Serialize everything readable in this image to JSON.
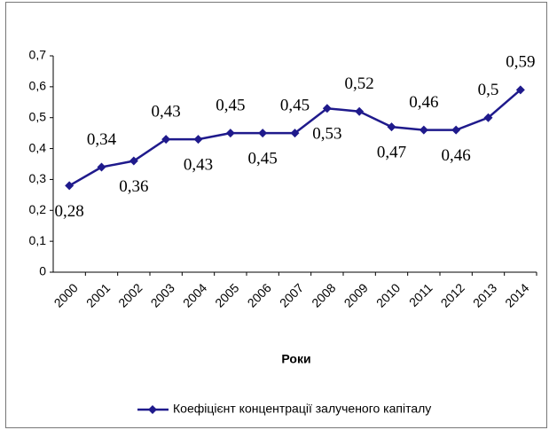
{
  "chart_data": {
    "type": "line",
    "x_label": "Роки",
    "categories": [
      "2000",
      "2001",
      "2002",
      "2003",
      "2004",
      "2005",
      "2006",
      "2007",
      "2008",
      "2009",
      "2010",
      "2011",
      "2012",
      "2013",
      "2014"
    ],
    "series": [
      {
        "name": "Коефіцієнт концентрації залученого капіталу",
        "color": "#1f1a8c",
        "values": [
          0.28,
          0.34,
          0.36,
          0.43,
          0.43,
          0.45,
          0.45,
          0.45,
          0.53,
          0.52,
          0.47,
          0.46,
          0.46,
          0.5,
          0.59
        ],
        "value_labels": [
          "0,28",
          "0,34",
          "0,36",
          "0,43",
          "0,43",
          "0,45",
          "0,45",
          "0,45",
          "0,53",
          "0,52",
          "0,47",
          "0,46",
          "0,46",
          "0,5",
          "0,59"
        ]
      }
    ],
    "ylim": [
      0,
      0.7
    ],
    "yticks": [
      0,
      {
        "value": 0.1,
        "label": "0,1"
      },
      {
        "value": 0.2,
        "label": "0,2"
      },
      {
        "value": 0.3,
        "label": "0,3"
      },
      {
        "value": 0.4,
        "label": "0,4"
      },
      {
        "value": 0.5,
        "label": "0,5"
      },
      {
        "value": 0.6,
        "label": "0,6"
      },
      {
        "value": 0.7,
        "label": "0,7"
      }
    ],
    "grid": false,
    "legend": "bottom"
  }
}
